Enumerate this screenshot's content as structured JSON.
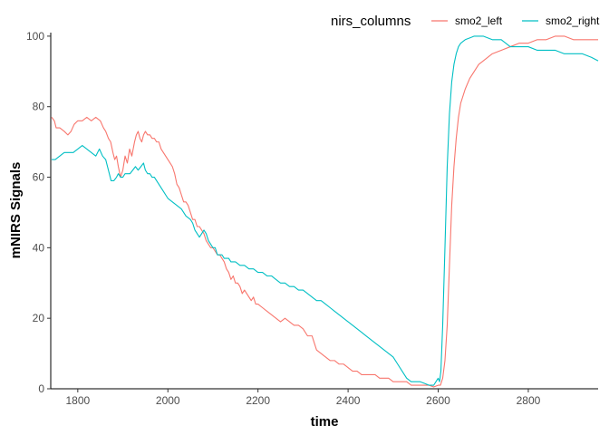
{
  "chart_data": {
    "type": "line",
    "xlabel": "time",
    "ylabel": "mNIRS Signals",
    "xlim": [
      1740,
      2955
    ],
    "ylim": [
      0,
      101
    ],
    "x_ticks": [
      "1800",
      "2000",
      "2200",
      "2400",
      "2600",
      "2800"
    ],
    "y_ticks": [
      "0",
      "20",
      "40",
      "60",
      "80",
      "100"
    ],
    "grid": false,
    "legend": {
      "title": "nirs_columns",
      "position": "top-right",
      "entries": [
        "smo2_left",
        "smo2_right"
      ]
    },
    "series": [
      {
        "name": "smo2_left",
        "color": "#F8766D",
        "points": [
          [
            1742,
            77
          ],
          [
            1748,
            76
          ],
          [
            1752,
            74
          ],
          [
            1760,
            74
          ],
          [
            1770,
            73
          ],
          [
            1778,
            72
          ],
          [
            1785,
            73
          ],
          [
            1792,
            75
          ],
          [
            1800,
            76
          ],
          [
            1810,
            76
          ],
          [
            1820,
            77
          ],
          [
            1830,
            76
          ],
          [
            1840,
            77
          ],
          [
            1850,
            76
          ],
          [
            1857,
            74
          ],
          [
            1862,
            73
          ],
          [
            1868,
            71
          ],
          [
            1873,
            70
          ],
          [
            1878,
            67
          ],
          [
            1882,
            65
          ],
          [
            1886,
            66
          ],
          [
            1890,
            63
          ],
          [
            1895,
            60
          ],
          [
            1900,
            62
          ],
          [
            1905,
            66
          ],
          [
            1910,
            64
          ],
          [
            1915,
            68
          ],
          [
            1920,
            66
          ],
          [
            1926,
            70
          ],
          [
            1930,
            72
          ],
          [
            1934,
            73
          ],
          [
            1938,
            71
          ],
          [
            1942,
            70
          ],
          [
            1946,
            72
          ],
          [
            1950,
            73
          ],
          [
            1955,
            72
          ],
          [
            1960,
            72
          ],
          [
            1965,
            71
          ],
          [
            1970,
            71
          ],
          [
            1975,
            70
          ],
          [
            1980,
            70
          ],
          [
            1985,
            68
          ],
          [
            1990,
            67
          ],
          [
            1995,
            66
          ],
          [
            2000,
            65
          ],
          [
            2005,
            64
          ],
          [
            2010,
            63
          ],
          [
            2015,
            61
          ],
          [
            2020,
            58
          ],
          [
            2025,
            57
          ],
          [
            2030,
            55
          ],
          [
            2035,
            53
          ],
          [
            2040,
            53
          ],
          [
            2045,
            52
          ],
          [
            2050,
            50
          ],
          [
            2055,
            48
          ],
          [
            2060,
            48
          ],
          [
            2065,
            46
          ],
          [
            2070,
            46
          ],
          [
            2075,
            45
          ],
          [
            2080,
            44
          ],
          [
            2085,
            42
          ],
          [
            2090,
            41
          ],
          [
            2095,
            40
          ],
          [
            2100,
            40
          ],
          [
            2105,
            39
          ],
          [
            2110,
            38
          ],
          [
            2115,
            38
          ],
          [
            2120,
            37
          ],
          [
            2125,
            36
          ],
          [
            2130,
            34
          ],
          [
            2135,
            33
          ],
          [
            2140,
            31
          ],
          [
            2145,
            32
          ],
          [
            2150,
            30
          ],
          [
            2155,
            30
          ],
          [
            2160,
            29
          ],
          [
            2165,
            27
          ],
          [
            2170,
            28
          ],
          [
            2175,
            27
          ],
          [
            2180,
            26
          ],
          [
            2185,
            25
          ],
          [
            2190,
            26
          ],
          [
            2195,
            24
          ],
          [
            2200,
            24
          ],
          [
            2210,
            23
          ],
          [
            2220,
            22
          ],
          [
            2230,
            21
          ],
          [
            2240,
            20
          ],
          [
            2250,
            19
          ],
          [
            2260,
            20
          ],
          [
            2270,
            19
          ],
          [
            2280,
            18
          ],
          [
            2290,
            18
          ],
          [
            2300,
            17
          ],
          [
            2310,
            15
          ],
          [
            2320,
            15
          ],
          [
            2325,
            13
          ],
          [
            2330,
            11
          ],
          [
            2340,
            10
          ],
          [
            2350,
            9
          ],
          [
            2360,
            8
          ],
          [
            2370,
            8
          ],
          [
            2380,
            7
          ],
          [
            2390,
            7
          ],
          [
            2400,
            6
          ],
          [
            2410,
            5
          ],
          [
            2420,
            5
          ],
          [
            2430,
            4
          ],
          [
            2440,
            4
          ],
          [
            2450,
            4
          ],
          [
            2460,
            4
          ],
          [
            2470,
            3
          ],
          [
            2480,
            3
          ],
          [
            2490,
            3
          ],
          [
            2500,
            2
          ],
          [
            2510,
            2
          ],
          [
            2520,
            2
          ],
          [
            2530,
            2
          ],
          [
            2540,
            1
          ],
          [
            2550,
            1
          ],
          [
            2560,
            1
          ],
          [
            2570,
            1
          ],
          [
            2580,
            1
          ],
          [
            2590,
            0.5
          ],
          [
            2600,
            1
          ],
          [
            2605,
            1
          ],
          [
            2610,
            3
          ],
          [
            2615,
            8
          ],
          [
            2620,
            18
          ],
          [
            2625,
            35
          ],
          [
            2630,
            52
          ],
          [
            2635,
            63
          ],
          [
            2640,
            71
          ],
          [
            2645,
            77
          ],
          [
            2650,
            81
          ],
          [
            2660,
            85
          ],
          [
            2670,
            88
          ],
          [
            2680,
            90
          ],
          [
            2690,
            92
          ],
          [
            2700,
            93
          ],
          [
            2720,
            95
          ],
          [
            2740,
            96
          ],
          [
            2760,
            97
          ],
          [
            2780,
            98
          ],
          [
            2800,
            98
          ],
          [
            2820,
            99
          ],
          [
            2840,
            99
          ],
          [
            2860,
            100
          ],
          [
            2880,
            100
          ],
          [
            2900,
            99
          ],
          [
            2920,
            99
          ],
          [
            2940,
            99
          ],
          [
            2955,
            99
          ]
        ]
      },
      {
        "name": "smo2_right",
        "color": "#00BFC4",
        "points": [
          [
            1742,
            65
          ],
          [
            1750,
            65
          ],
          [
            1760,
            66
          ],
          [
            1770,
            67
          ],
          [
            1780,
            67
          ],
          [
            1790,
            67
          ],
          [
            1800,
            68
          ],
          [
            1810,
            69
          ],
          [
            1820,
            68
          ],
          [
            1830,
            67
          ],
          [
            1840,
            66
          ],
          [
            1848,
            68
          ],
          [
            1855,
            66
          ],
          [
            1862,
            65
          ],
          [
            1868,
            62
          ],
          [
            1874,
            59
          ],
          [
            1880,
            59
          ],
          [
            1886,
            60
          ],
          [
            1890,
            61
          ],
          [
            1895,
            60
          ],
          [
            1900,
            60
          ],
          [
            1905,
            61
          ],
          [
            1910,
            61
          ],
          [
            1916,
            61
          ],
          [
            1922,
            62
          ],
          [
            1928,
            63
          ],
          [
            1934,
            62
          ],
          [
            1940,
            63
          ],
          [
            1946,
            64
          ],
          [
            1950,
            62
          ],
          [
            1955,
            61
          ],
          [
            1960,
            61
          ],
          [
            1965,
            60
          ],
          [
            1970,
            60
          ],
          [
            1975,
            59
          ],
          [
            1980,
            58
          ],
          [
            1985,
            57
          ],
          [
            1990,
            56
          ],
          [
            1995,
            55
          ],
          [
            2000,
            54
          ],
          [
            2010,
            53
          ],
          [
            2020,
            52
          ],
          [
            2030,
            51
          ],
          [
            2040,
            49
          ],
          [
            2050,
            48
          ],
          [
            2055,
            47
          ],
          [
            2060,
            45
          ],
          [
            2065,
            44
          ],
          [
            2070,
            43
          ],
          [
            2075,
            44
          ],
          [
            2080,
            45
          ],
          [
            2085,
            44
          ],
          [
            2090,
            42
          ],
          [
            2095,
            41
          ],
          [
            2100,
            40
          ],
          [
            2105,
            40
          ],
          [
            2110,
            38
          ],
          [
            2115,
            38
          ],
          [
            2120,
            38
          ],
          [
            2125,
            37
          ],
          [
            2130,
            37
          ],
          [
            2135,
            37
          ],
          [
            2140,
            36
          ],
          [
            2150,
            36
          ],
          [
            2160,
            35
          ],
          [
            2170,
            35
          ],
          [
            2180,
            34
          ],
          [
            2190,
            34
          ],
          [
            2200,
            33
          ],
          [
            2210,
            33
          ],
          [
            2220,
            32
          ],
          [
            2230,
            32
          ],
          [
            2240,
            31
          ],
          [
            2250,
            30
          ],
          [
            2260,
            30
          ],
          [
            2270,
            29
          ],
          [
            2280,
            29
          ],
          [
            2290,
            28
          ],
          [
            2300,
            28
          ],
          [
            2310,
            27
          ],
          [
            2320,
            26
          ],
          [
            2330,
            25
          ],
          [
            2340,
            25
          ],
          [
            2350,
            24
          ],
          [
            2360,
            23
          ],
          [
            2370,
            22
          ],
          [
            2380,
            21
          ],
          [
            2390,
            20
          ],
          [
            2400,
            19
          ],
          [
            2410,
            18
          ],
          [
            2420,
            17
          ],
          [
            2430,
            16
          ],
          [
            2440,
            15
          ],
          [
            2450,
            14
          ],
          [
            2460,
            13
          ],
          [
            2470,
            12
          ],
          [
            2480,
            11
          ],
          [
            2490,
            10
          ],
          [
            2500,
            9
          ],
          [
            2510,
            7
          ],
          [
            2520,
            5
          ],
          [
            2530,
            3
          ],
          [
            2540,
            2
          ],
          [
            2550,
            2
          ],
          [
            2560,
            2
          ],
          [
            2570,
            1.5
          ],
          [
            2580,
            1
          ],
          [
            2590,
            1
          ],
          [
            2595,
            2
          ],
          [
            2600,
            3
          ],
          [
            2603,
            2
          ],
          [
            2606,
            5
          ],
          [
            2610,
            18
          ],
          [
            2615,
            40
          ],
          [
            2620,
            63
          ],
          [
            2625,
            78
          ],
          [
            2630,
            87
          ],
          [
            2635,
            92
          ],
          [
            2640,
            95
          ],
          [
            2645,
            97
          ],
          [
            2650,
            98
          ],
          [
            2660,
            99
          ],
          [
            2670,
            99.5
          ],
          [
            2680,
            100
          ],
          [
            2700,
            100
          ],
          [
            2720,
            99
          ],
          [
            2740,
            99
          ],
          [
            2760,
            97
          ],
          [
            2780,
            97
          ],
          [
            2800,
            97
          ],
          [
            2820,
            96
          ],
          [
            2840,
            96
          ],
          [
            2860,
            96
          ],
          [
            2880,
            95
          ],
          [
            2900,
            95
          ],
          [
            2920,
            95
          ],
          [
            2940,
            94
          ],
          [
            2955,
            93
          ]
        ]
      }
    ]
  }
}
